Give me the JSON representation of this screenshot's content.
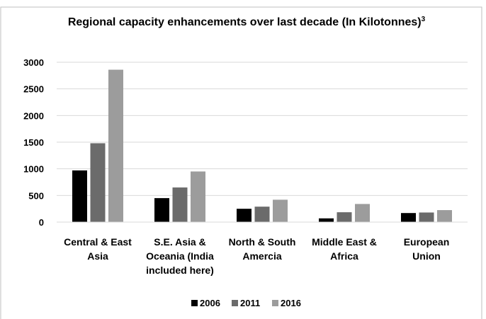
{
  "chart_data": {
    "type": "bar",
    "title": "Regional capacity enhancements over last decade (In Kilotonnes)",
    "title_superscript": "3",
    "categories": [
      [
        "Central & East",
        "Asia"
      ],
      [
        "S.E. Asia &",
        "Oceania (India",
        "included here)"
      ],
      [
        "North & South",
        "Amercia"
      ],
      [
        "Middle East &",
        "Africa"
      ],
      [
        "European",
        "Union"
      ]
    ],
    "series": [
      {
        "name": "2006",
        "color": "#000000",
        "values": [
          970,
          450,
          250,
          70,
          170
        ]
      },
      {
        "name": "2011",
        "color": "#6b6b6b",
        "values": [
          1480,
          650,
          290,
          185,
          180
        ]
      },
      {
        "name": "2016",
        "color": "#9c9c9c",
        "values": [
          2860,
          950,
          420,
          340,
          225
        ]
      }
    ],
    "yticks": [
      "0",
      "500",
      "1000",
      "1500",
      "2000",
      "2500",
      "3000"
    ],
    "ylim": [
      0,
      3000
    ],
    "grid": true,
    "legend_position": "bottom"
  }
}
